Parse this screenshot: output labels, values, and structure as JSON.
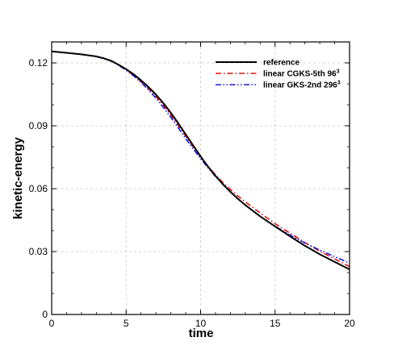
{
  "chart_data": {
    "type": "line",
    "xlabel": "time",
    "ylabel": "kinetic-energy",
    "xlim": [
      0,
      20
    ],
    "ylim": [
      0,
      0.13
    ],
    "xticks": [
      0,
      5,
      10,
      15,
      20
    ],
    "xtick_labels": [
      "0",
      "5",
      "10",
      "15",
      "20"
    ],
    "yticks": [
      0,
      0.03,
      0.06,
      0.09,
      0.12
    ],
    "ytick_labels": [
      "0",
      "0.03",
      "0.06",
      "0.09",
      "0.12"
    ],
    "grid": true,
    "legend_position": "top-right",
    "series": [
      {
        "name": "reference",
        "sup": "",
        "color": "#000000",
        "dash": "solid",
        "x": [
          0,
          1,
          2,
          3,
          3.5,
          4,
          4.5,
          5,
          5.5,
          6,
          6.5,
          7,
          7.5,
          8,
          8.5,
          9,
          9.5,
          10,
          10.5,
          11,
          11.5,
          12,
          12.5,
          13,
          14,
          15,
          16,
          17,
          18,
          19,
          20
        ],
        "y": [
          0.1255,
          0.1248,
          0.1241,
          0.1231,
          0.1222,
          0.121,
          0.1191,
          0.117,
          0.1146,
          0.1117,
          0.1085,
          0.1049,
          0.1008,
          0.0962,
          0.0912,
          0.0859,
          0.0806,
          0.0754,
          0.0705,
          0.0661,
          0.0621,
          0.0585,
          0.0552,
          0.0522,
          0.0468,
          0.042,
          0.0373,
          0.0328,
          0.0287,
          0.0251,
          0.0215
        ]
      },
      {
        "name": "linear CGKS-5th 96",
        "sup": "3",
        "color": "#e01010",
        "dash": "dashdot",
        "x": [
          0,
          1,
          2,
          3,
          3.5,
          4,
          4.5,
          5,
          5.5,
          6,
          6.5,
          7,
          7.5,
          8,
          8.5,
          9,
          9.5,
          10,
          10.5,
          11,
          11.5,
          12,
          12.5,
          13,
          14,
          15,
          16,
          17,
          18,
          19,
          20
        ],
        "y": [
          0.1255,
          0.1248,
          0.124,
          0.123,
          0.1221,
          0.1209,
          0.1189,
          0.1166,
          0.1141,
          0.1111,
          0.1077,
          0.104,
          0.0998,
          0.0952,
          0.0902,
          0.0851,
          0.08,
          0.0752,
          0.0707,
          0.0666,
          0.0629,
          0.0596,
          0.0565,
          0.0537,
          0.0484,
          0.0433,
          0.0388,
          0.0343,
          0.0302,
          0.0265,
          0.0228
        ]
      },
      {
        "name": "linear GKS-2nd 296",
        "sup": "3",
        "color": "#1a1add",
        "dash": "dashdotdot",
        "x": [
          0,
          1,
          2,
          3,
          3.5,
          4,
          4.5,
          5,
          5.5,
          6,
          6.5,
          7,
          7.5,
          8,
          8.5,
          9,
          9.5,
          10,
          10.5,
          11,
          11.5,
          12,
          12.5,
          13,
          14,
          15,
          16,
          17,
          18,
          19,
          20
        ],
        "y": [
          0.1255,
          0.1248,
          0.124,
          0.123,
          0.122,
          0.1208,
          0.1189,
          0.1165,
          0.1138,
          0.1107,
          0.1071,
          0.1032,
          0.0988,
          0.0941,
          0.089,
          0.0839,
          0.079,
          0.0743,
          0.0699,
          0.0658,
          0.062,
          0.0585,
          0.0552,
          0.0521,
          0.0467,
          0.0421,
          0.0379,
          0.0341,
          0.0307,
          0.0276,
          0.0245
        ]
      }
    ]
  }
}
